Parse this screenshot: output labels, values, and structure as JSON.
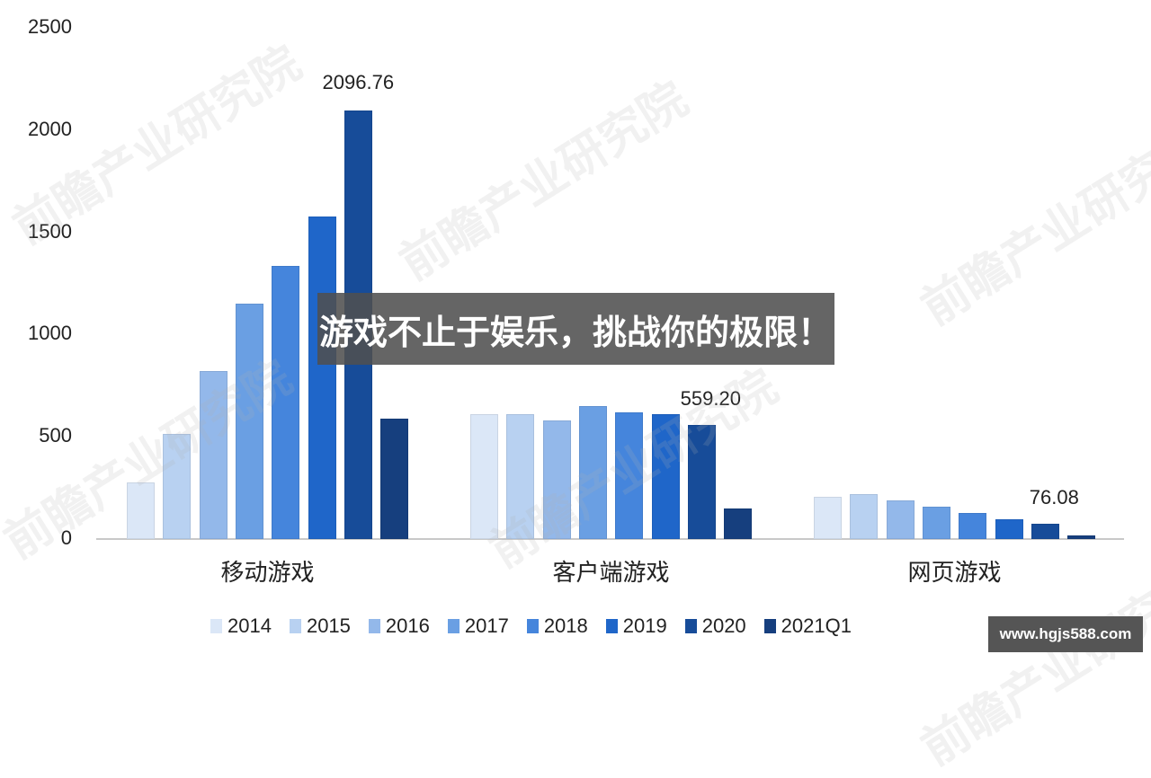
{
  "chart_data": {
    "type": "bar",
    "title": "",
    "xlabel": "",
    "ylabel": "",
    "ylim": [
      0,
      2500
    ],
    "yticks": [
      0,
      500,
      1000,
      1500,
      2000,
      2500
    ],
    "grid": false,
    "legend_position": "bottom",
    "categories": [
      "移动游戏",
      "客户端游戏",
      "网页游戏"
    ],
    "series": [
      {
        "name": "2014",
        "color": "#dbe7f7",
        "values": [
          277,
          611,
          206
        ]
      },
      {
        "name": "2015",
        "color": "#b8d1f1",
        "values": [
          514,
          611,
          220
        ]
      },
      {
        "name": "2016",
        "color": "#93b8ea",
        "values": [
          822,
          580,
          189
        ]
      },
      {
        "name": "2017",
        "color": "#6a9fe3",
        "values": [
          1151,
          651,
          158
        ]
      },
      {
        "name": "2018",
        "color": "#4585dc",
        "values": [
          1336,
          619,
          127
        ]
      },
      {
        "name": "2019",
        "color": "#1f66c9",
        "values": [
          1578,
          612,
          97
        ]
      },
      {
        "name": "2020",
        "color": "#174c99",
        "values": [
          2096.76,
          559.2,
          76.08
        ]
      },
      {
        "name": "2021Q1",
        "color": "#163f7e",
        "values": [
          589,
          149,
          18
        ]
      }
    ],
    "annotations": [
      {
        "category": "移动游戏",
        "series": "2020",
        "text": "2096.76"
      },
      {
        "category": "客户端游戏",
        "series": "2020",
        "text": "559.20"
      },
      {
        "category": "网页游戏",
        "series": "2020",
        "text": "76.08"
      }
    ]
  },
  "overlay": {
    "banner_text": "游戏不止于娱乐，挑战你的极限！",
    "url_badge": "www.hgjs588.com"
  },
  "watermark": {
    "text": "前瞻产业研究院"
  }
}
